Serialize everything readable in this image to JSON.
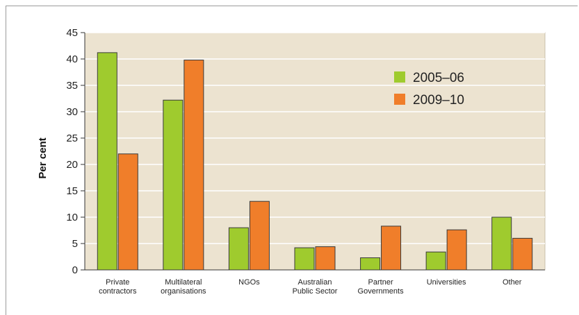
{
  "chart_data": {
    "type": "bar",
    "title": "",
    "xlabel": "",
    "ylabel": "Per cent",
    "ylim": [
      0,
      45
    ],
    "yticks": [
      0,
      5,
      10,
      15,
      20,
      25,
      30,
      35,
      40,
      45
    ],
    "grid": true,
    "legend_position": "top-right",
    "categories": [
      [
        "Private",
        "contractors"
      ],
      [
        "Multilateral",
        "organisations"
      ],
      [
        "NGOs"
      ],
      [
        "Australian",
        "Public Sector"
      ],
      [
        "Partner",
        "Governments"
      ],
      [
        "Universities"
      ],
      [
        "Other"
      ]
    ],
    "series": [
      {
        "name": "2005–06",
        "color": "#9fcb2e",
        "values": [
          41.2,
          32.2,
          8.0,
          4.2,
          2.3,
          3.4,
          10.0
        ]
      },
      {
        "name": "2009–10",
        "color": "#f07e2a",
        "values": [
          22.0,
          39.8,
          13.0,
          4.4,
          8.3,
          7.6,
          6.0
        ]
      }
    ],
    "plot_background": "#ece3d0"
  }
}
